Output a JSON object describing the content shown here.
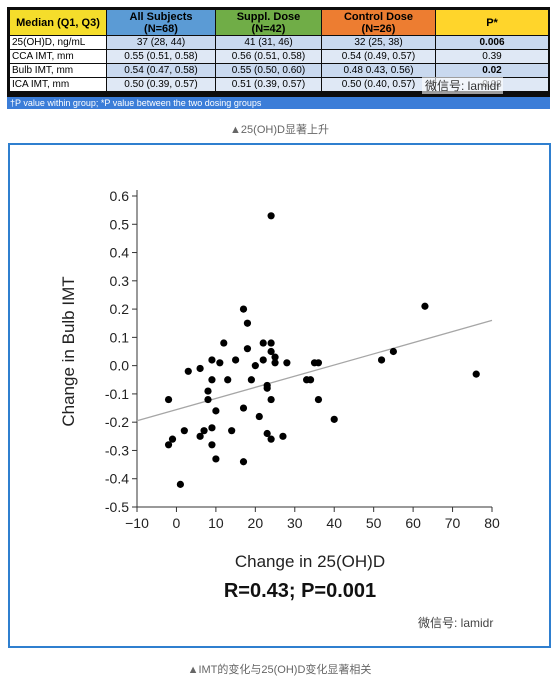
{
  "table": {
    "headers": [
      {
        "label": "Median (Q1, Q3)",
        "sub": "",
        "color": "#f5dd2b"
      },
      {
        "label": "All Subjects",
        "sub": "(N=68)",
        "color": "#5b9bd5"
      },
      {
        "label": "Suppl. Dose",
        "sub": "(N=42)",
        "color": "#70ad47"
      },
      {
        "label": "Control Dose",
        "sub": "(N=26)",
        "color": "#ed7d31"
      },
      {
        "label": "P*",
        "sub": "",
        "color": "#ffd52b"
      }
    ],
    "rows": [
      {
        "cells": [
          "25(OH)D, ng/mL",
          "37 (28, 44)",
          "41 (31, 46)",
          "32 (25, 38)",
          "0.006"
        ],
        "bold_p": true
      },
      {
        "cells": [
          "CCA IMT, mm",
          "0.55 (0.51, 0.58)",
          "0.56 (0.51, 0.58)",
          "0.54 (0.49, 0.57)",
          "0.39"
        ],
        "bold_p": false
      },
      {
        "cells": [
          "Bulb IMT, mm",
          "0.54 (0.47, 0.58)",
          "0.55 (0.50, 0.60)",
          "0.48 0.43, 0.56)",
          "0.02"
        ],
        "bold_p": true
      },
      {
        "cells": [
          "ICA IMT, mm",
          "0.50 (0.39, 0.57)",
          "0.51 (0.39, 0.57)",
          "0.50 (0.40, 0.57)",
          "0.08"
        ],
        "bold_p": false
      }
    ],
    "footnote": "†P value within group; *P value between the two dosing groups"
  },
  "watermark_label": "微信号: lamidr",
  "captions": {
    "top": "▲25(OH)D显著上升",
    "bottom": "▲IMT的变化与25(OH)D变化显著相关"
  },
  "chart_data": {
    "type": "scatter",
    "title": "",
    "xlabel": "Change in 25(OH)D",
    "ylabel": "Change in Bulb IMT",
    "annotation": "R=0.43; P=0.001",
    "xlim": [
      -10,
      80
    ],
    "ylim": [
      -0.5,
      0.6
    ],
    "xticks": [
      -10,
      0,
      10,
      20,
      30,
      40,
      50,
      60,
      70,
      80
    ],
    "yticks": [
      -0.5,
      -0.4,
      -0.3,
      -0.2,
      -0.1,
      0.0,
      0.1,
      0.2,
      0.3,
      0.4,
      0.5,
      0.6
    ],
    "ytick_labels": [
      "-0.5",
      "-0.4",
      "-0.3",
      "-0.2",
      "-0.1",
      "0.0",
      "0.1",
      "0.2",
      "0.3",
      "0.4",
      "0.5",
      "0.6"
    ],
    "grid": false,
    "point_color": "#000000",
    "line_color": "#a6a6a6",
    "regression": {
      "x0": -10,
      "y0": -0.195,
      "x1": 80,
      "y1": 0.16
    },
    "points": [
      [
        -2,
        -0.12
      ],
      [
        -2,
        -0.28
      ],
      [
        -1,
        -0.26
      ],
      [
        1,
        -0.42
      ],
      [
        2,
        -0.23
      ],
      [
        3,
        -0.02
      ],
      [
        6,
        -0.01
      ],
      [
        6,
        -0.25
      ],
      [
        7,
        -0.23
      ],
      [
        8,
        -0.09
      ],
      [
        8,
        -0.12
      ],
      [
        9,
        -0.05
      ],
      [
        9,
        -0.22
      ],
      [
        9,
        0.02
      ],
      [
        9,
        -0.28
      ],
      [
        10,
        -0.33
      ],
      [
        10,
        -0.16
      ],
      [
        11,
        0.01
      ],
      [
        12,
        0.08
      ],
      [
        13,
        -0.05
      ],
      [
        14,
        -0.23
      ],
      [
        15,
        0.02
      ],
      [
        17,
        0.2
      ],
      [
        17,
        -0.15
      ],
      [
        17,
        -0.34
      ],
      [
        18,
        0.15
      ],
      [
        18,
        0.06
      ],
      [
        19,
        -0.05
      ],
      [
        20,
        0.0
      ],
      [
        21,
        -0.18
      ],
      [
        22,
        0.08
      ],
      [
        22,
        0.02
      ],
      [
        23,
        -0.08
      ],
      [
        23,
        -0.07
      ],
      [
        23,
        -0.24
      ],
      [
        24,
        0.08
      ],
      [
        24,
        0.05
      ],
      [
        24,
        -0.12
      ],
      [
        24,
        -0.26
      ],
      [
        25,
        0.01
      ],
      [
        25,
        0.03
      ],
      [
        24,
        0.53
      ],
      [
        27,
        -0.25
      ],
      [
        28,
        0.01
      ],
      [
        33,
        -0.05
      ],
      [
        34,
        -0.05
      ],
      [
        35,
        0.01
      ],
      [
        36,
        0.01
      ],
      [
        36,
        -0.12
      ],
      [
        40,
        -0.19
      ],
      [
        52,
        0.02
      ],
      [
        55,
        0.05
      ],
      [
        63,
        0.21
      ],
      [
        76,
        -0.03
      ]
    ]
  }
}
